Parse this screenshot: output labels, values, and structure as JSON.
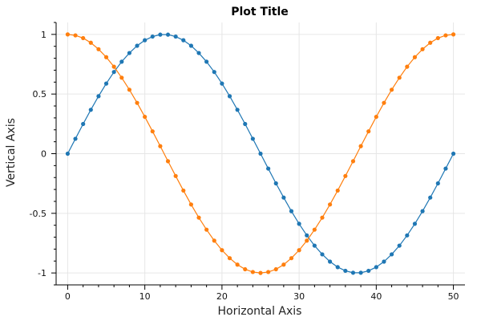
{
  "chart_data": {
    "type": "line",
    "title": "Plot Title",
    "xlabel": "Horizontal Axis",
    "ylabel": "Vertical Axis",
    "xlim": [
      -1.5,
      51.5
    ],
    "ylim": [
      -1.1,
      1.1
    ],
    "xticks": [
      0,
      10,
      20,
      30,
      40,
      50
    ],
    "xtick_labels": [
      "0",
      "10",
      "20",
      "30",
      "40",
      "50"
    ],
    "xminor_step": 2,
    "yticks": [
      -1,
      -0.5,
      0,
      0.5,
      1
    ],
    "ytick_labels": [
      "-1",
      "-0.5",
      "0",
      "0.5",
      "1"
    ],
    "yminor_step": 0.1,
    "grid": true,
    "legend": "none",
    "x": [
      0,
      1,
      2,
      3,
      4,
      5,
      6,
      7,
      8,
      9,
      10,
      11,
      12,
      13,
      14,
      15,
      16,
      17,
      18,
      19,
      20,
      21,
      22,
      23,
      24,
      25,
      26,
      27,
      28,
      29,
      30,
      31,
      32,
      33,
      34,
      35,
      36,
      37,
      38,
      39,
      40,
      41,
      42,
      43,
      44,
      45,
      46,
      47,
      48,
      49,
      50
    ],
    "series": [
      {
        "color": "#1f77b4",
        "values": [
          0,
          0.125,
          0.249,
          0.368,
          0.482,
          0.588,
          0.685,
          0.771,
          0.844,
          0.905,
          0.951,
          0.982,
          0.998,
          0.998,
          0.982,
          0.951,
          0.905,
          0.844,
          0.771,
          0.685,
          0.588,
          0.482,
          0.368,
          0.249,
          0.125,
          0,
          -0.125,
          -0.249,
          -0.368,
          -0.482,
          -0.588,
          -0.685,
          -0.771,
          -0.844,
          -0.905,
          -0.951,
          -0.982,
          -0.998,
          -0.998,
          -0.982,
          -0.951,
          -0.905,
          -0.844,
          -0.771,
          -0.685,
          -0.588,
          -0.482,
          -0.368,
          -0.249,
          -0.125,
          0
        ]
      },
      {
        "color": "#ff7f0e",
        "values": [
          1,
          0.992,
          0.969,
          0.93,
          0.876,
          0.809,
          0.729,
          0.637,
          0.536,
          0.426,
          0.309,
          0.187,
          0.063,
          -0.063,
          -0.187,
          -0.309,
          -0.426,
          -0.536,
          -0.637,
          -0.729,
          -0.809,
          -0.876,
          -0.93,
          -0.969,
          -0.992,
          -1,
          -0.992,
          -0.969,
          -0.93,
          -0.876,
          -0.809,
          -0.729,
          -0.637,
          -0.536,
          -0.426,
          -0.309,
          -0.187,
          -0.063,
          0.063,
          0.187,
          0.309,
          0.426,
          0.536,
          0.637,
          0.729,
          0.809,
          0.876,
          0.93,
          0.969,
          0.992,
          1
        ]
      }
    ]
  }
}
